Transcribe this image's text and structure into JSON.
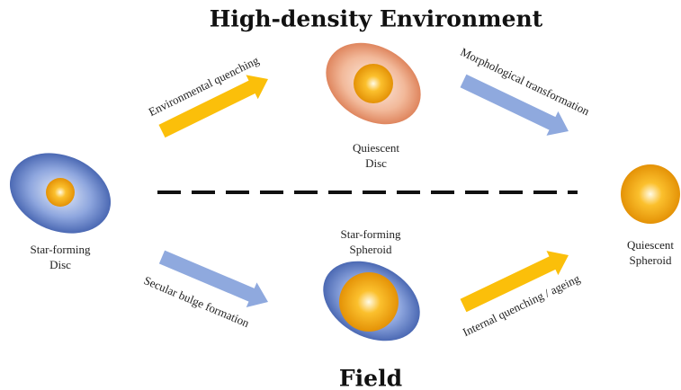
{
  "title": "High-density Environment",
  "bottom_title": "Field",
  "nodes": [
    {
      "label": [
        "Star-forming",
        "Disc"
      ]
    },
    {
      "label": [
        "Quiescent",
        "Disc"
      ]
    },
    {
      "label": [
        "Star-forming",
        "Spheroid"
      ]
    },
    {
      "label": [
        "Quiescent",
        "Spheroid"
      ]
    }
  ],
  "arrows": [
    {
      "label": "Environmental quenching"
    },
    {
      "label": "Morphological transformation"
    },
    {
      "label": "Secular bulge formation"
    },
    {
      "label": "Internal quenching / ageing"
    }
  ]
}
